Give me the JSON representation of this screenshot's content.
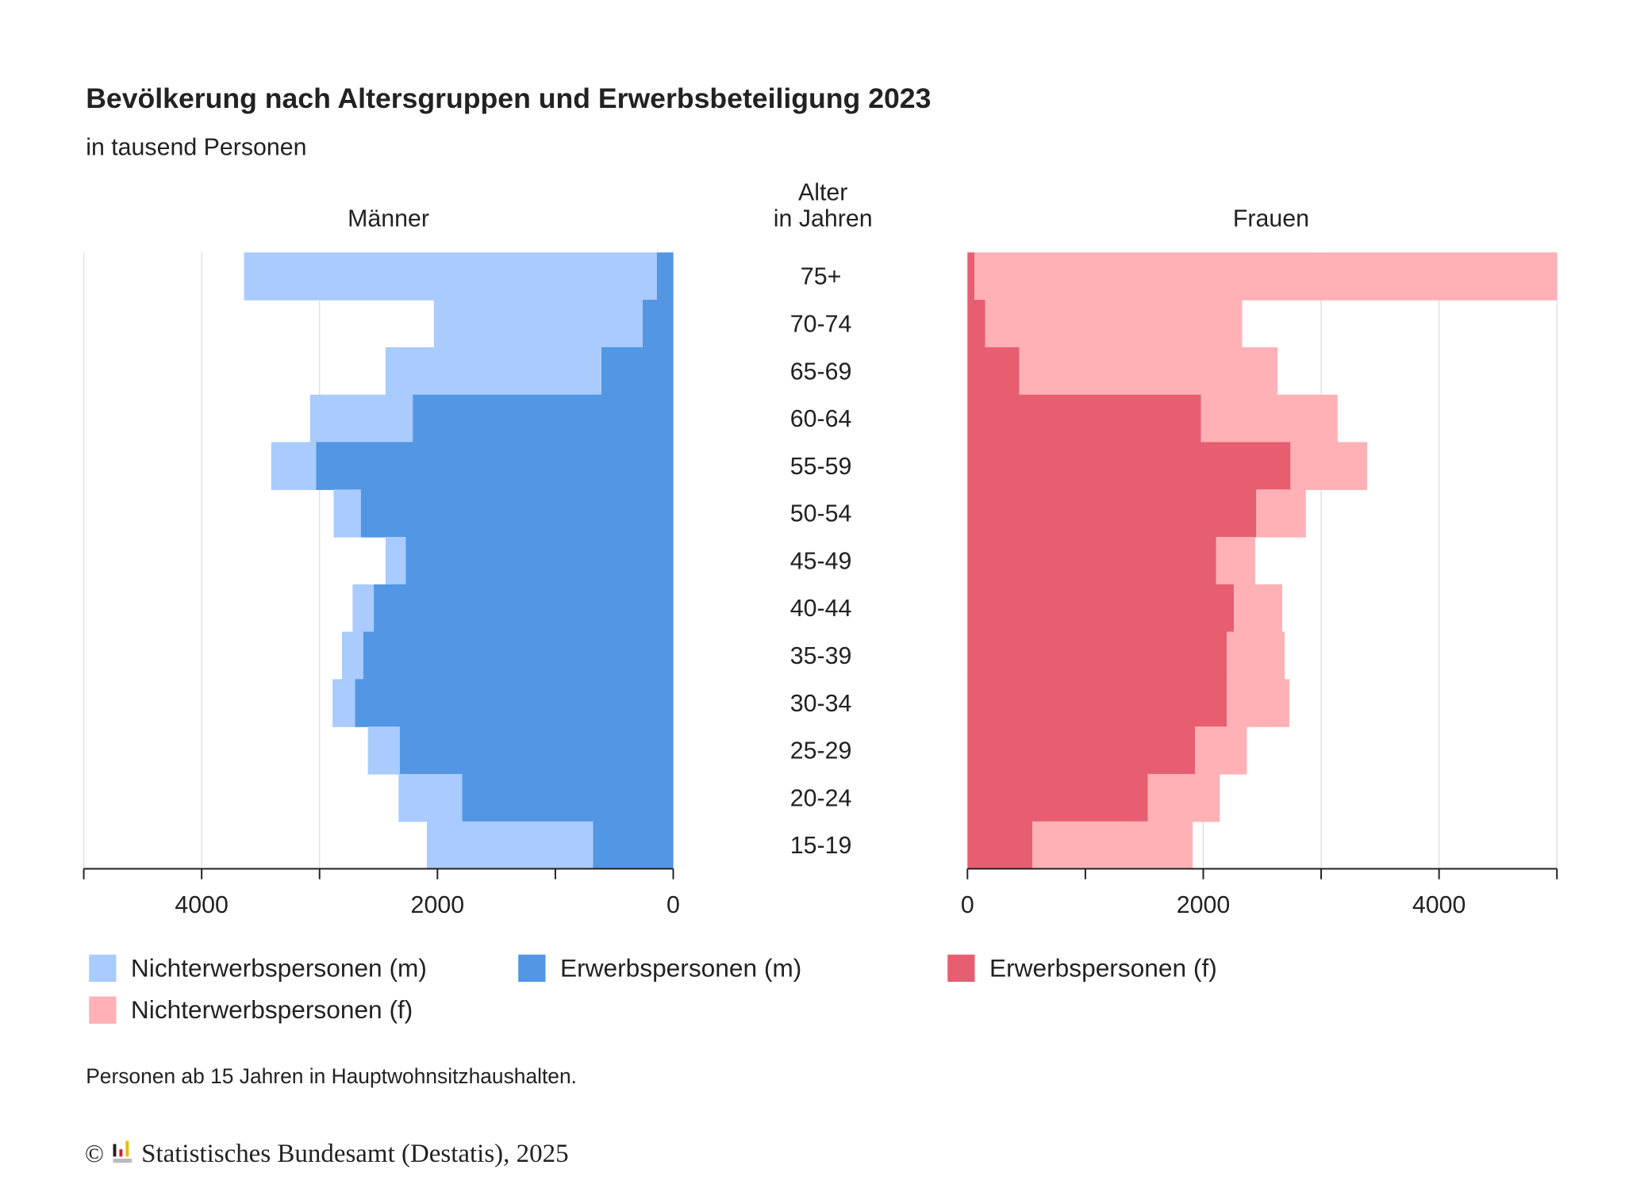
{
  "title": "Bevölkerung nach Altersgruppen und Erwerbsbeteiligung 2023",
  "subtitle": "in tausend Personen",
  "footnote": "Personen ab 15 Jahren in Hauptwohnsitzhaushalten.",
  "source": "Statistisches Bundesamt (Destatis), 2025",
  "copyright_symbol": "©",
  "chart_data": {
    "type": "bar",
    "orientation": "horizontal population pyramid, stacked",
    "categories_title": "Alter\nin Jahren",
    "categories": [
      "75+",
      "70-74",
      "65-69",
      "60-64",
      "55-59",
      "50-54",
      "45-49",
      "40-44",
      "35-39",
      "30-34",
      "25-29",
      "20-24",
      "15-19"
    ],
    "panels": [
      {
        "title": "Männer",
        "xlim": [
          5000,
          0
        ],
        "ticks": [
          4000,
          2000,
          0
        ],
        "grid": true,
        "series": [
          {
            "name": "Erwerbspersonen (m)",
            "color": "#5296e4",
            "values": [
              140,
              260,
              610,
              2210,
              3030,
              2650,
              2270,
              2540,
              2630,
              2700,
              2320,
              1790,
              680
            ]
          },
          {
            "name": "Nichterwerbspersonen (m)",
            "color": "#a9cbfd",
            "values": [
              3500,
              1770,
              1830,
              870,
              380,
              230,
              170,
              180,
              180,
              190,
              270,
              540,
              1410
            ]
          }
        ]
      },
      {
        "title": "Frauen",
        "xlim": [
          0,
          5000
        ],
        "ticks": [
          0,
          2000,
          4000
        ],
        "grid": true,
        "series": [
          {
            "name": "Erwerbspersonen (f)",
            "color": "#e75e71",
            "values": [
              60,
              150,
              440,
              1980,
              2740,
              2450,
              2110,
              2260,
              2200,
              2200,
              1930,
              1530,
              550
            ]
          },
          {
            "name": "Nichterwerbspersonen (f)",
            "color": "#ffb1b6",
            "values": [
              5250,
              2180,
              2190,
              1160,
              650,
              420,
              330,
              410,
              490,
              530,
              440,
              610,
              1360
            ]
          }
        ]
      }
    ],
    "legend": [
      "Nichterwerbspersonen (m)",
      "Erwerbspersonen (m)",
      "Erwerbspersonen (f)",
      "Nichterwerbspersonen (f)"
    ],
    "legend_placement": "bottom"
  }
}
